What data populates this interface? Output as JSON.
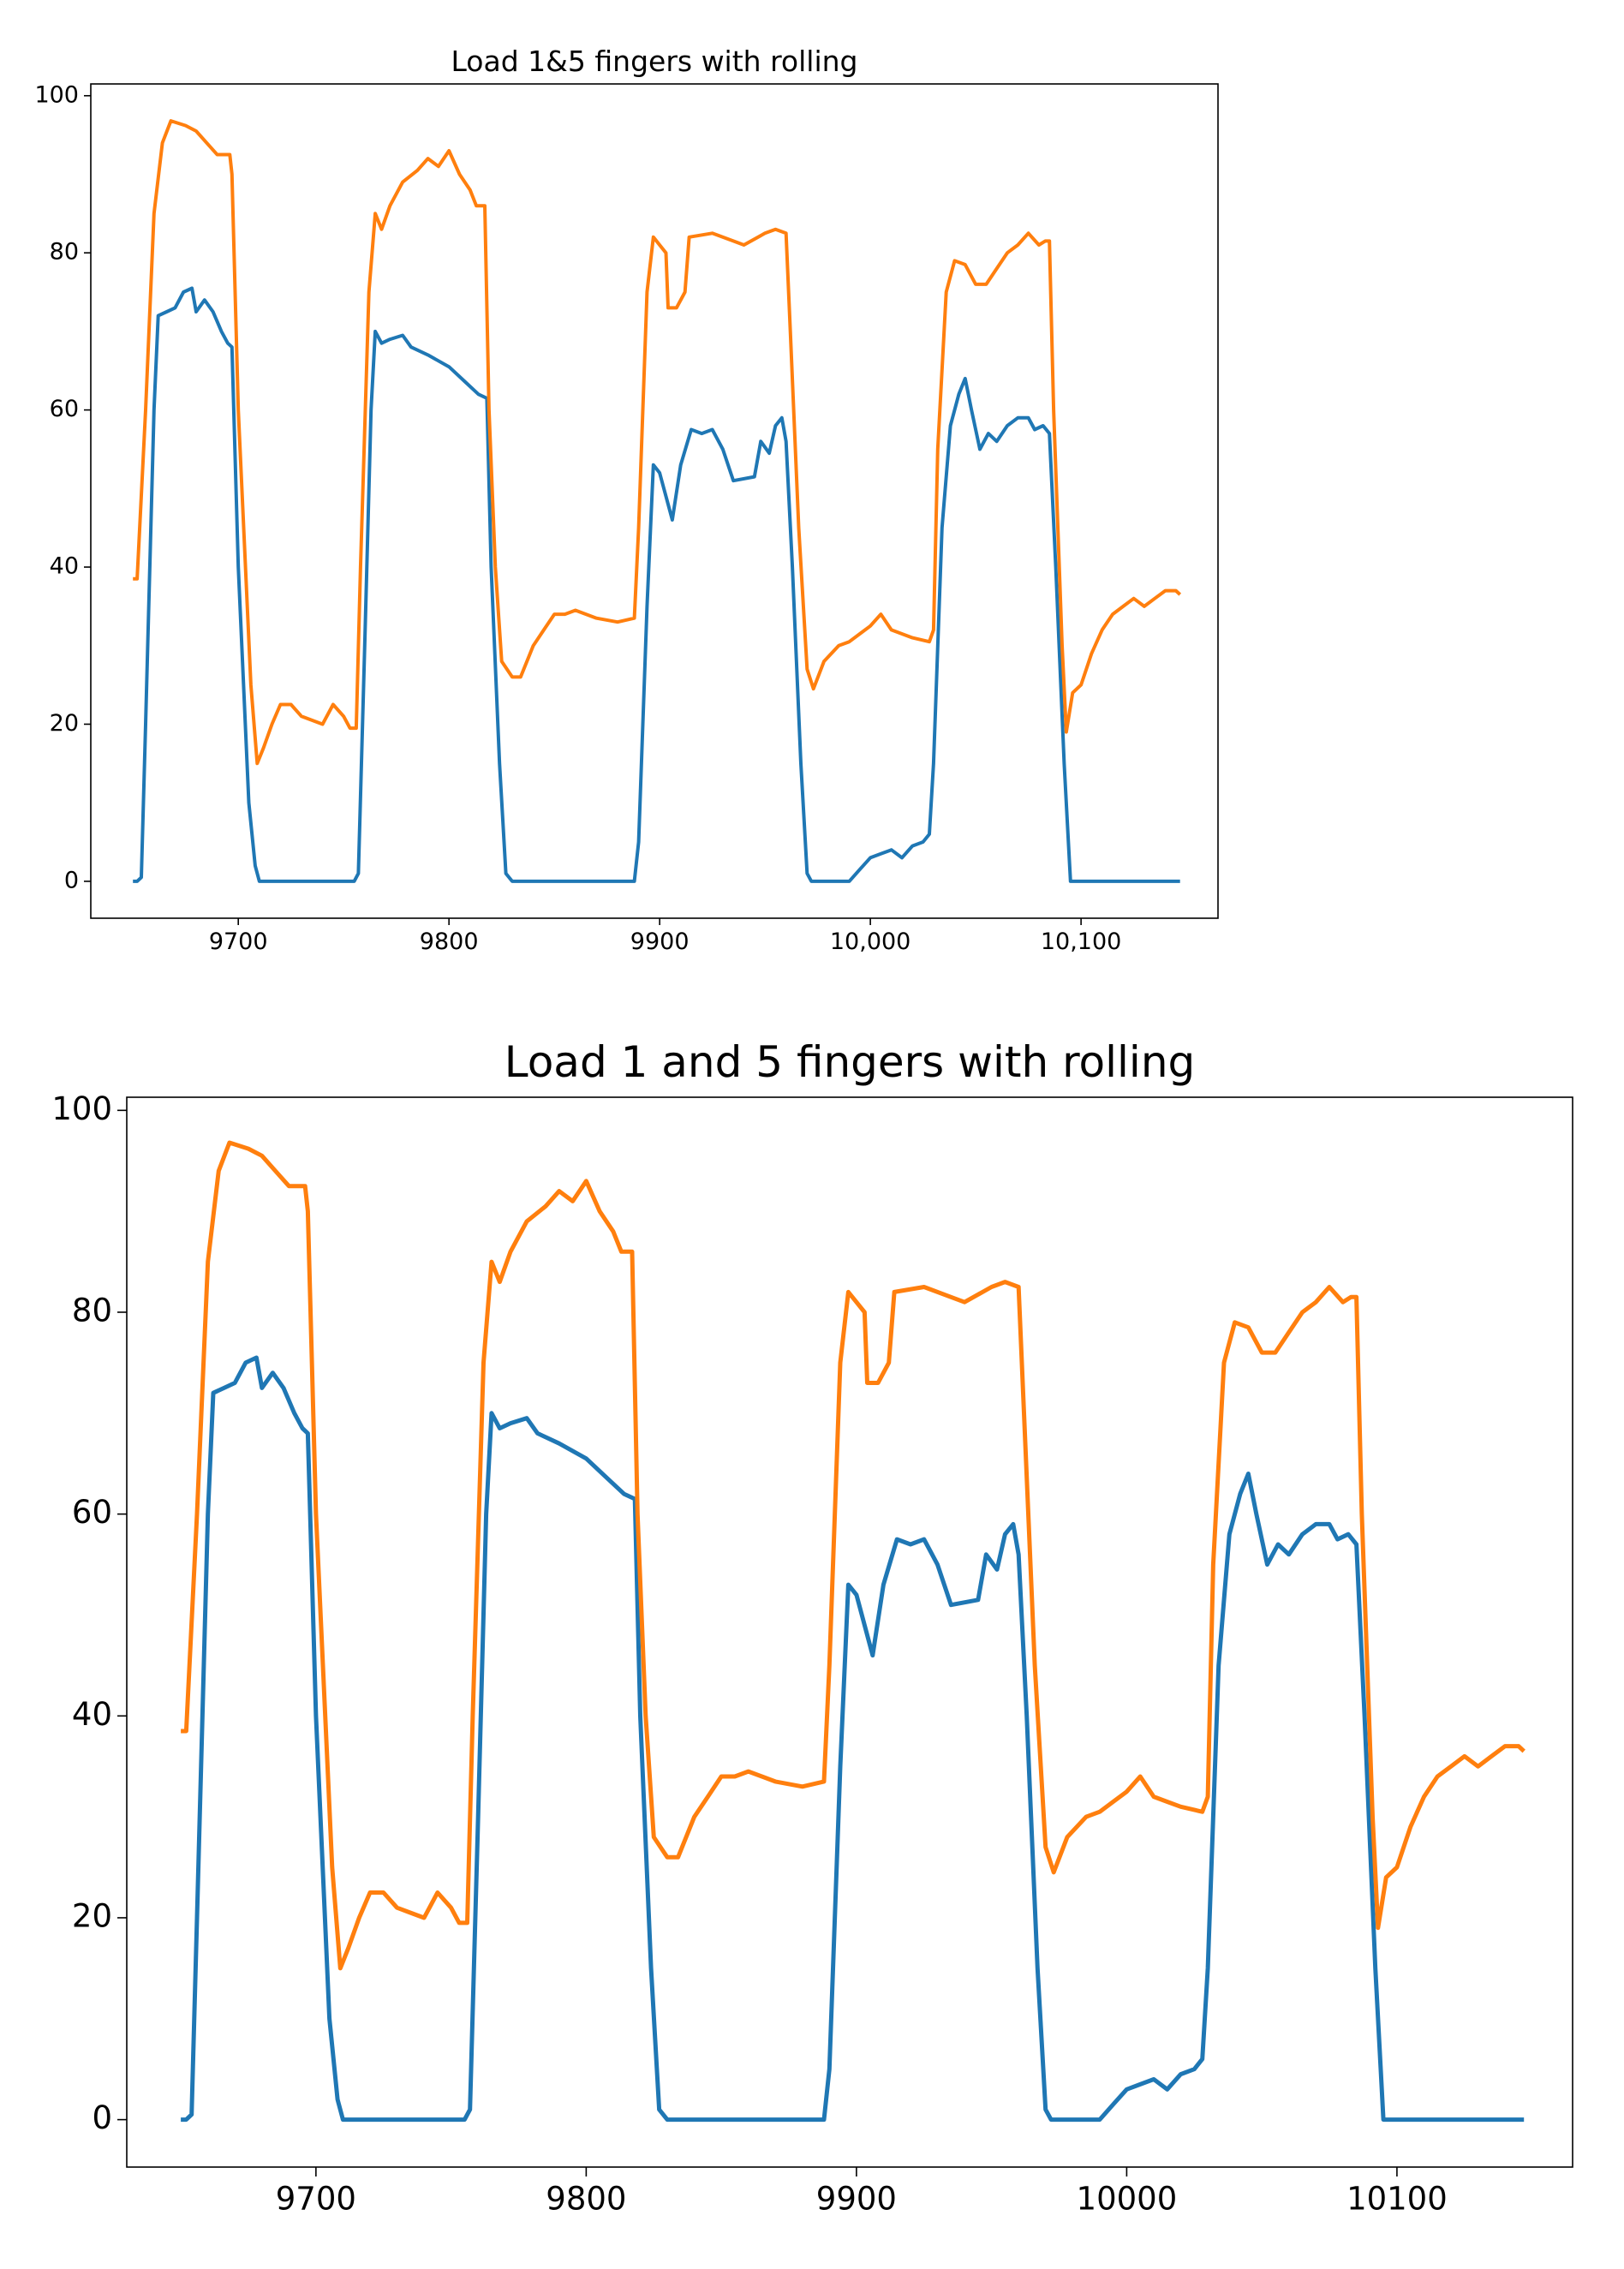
{
  "chart_data": [
    {
      "type": "line",
      "title": "Load 1&5 fingers with rolling",
      "xlim": [
        9630,
        10165
      ],
      "ylim": [
        -4.7,
        101.5
      ],
      "xticks": [
        9700,
        9800,
        9900,
        {
          "value": 10000,
          "label": "10,000"
        },
        {
          "value": 10100,
          "label": "10,100"
        }
      ],
      "yticks": [
        0,
        20,
        40,
        60,
        80,
        100
      ],
      "series": [
        {
          "color": "#1f77b4",
          "x": [
            9650,
            9652,
            9654,
            9656,
            9660,
            9662,
            9666,
            9670,
            9674,
            9678,
            9680,
            9684,
            9688,
            9692,
            9695,
            9697,
            9700,
            9705,
            9708,
            9710,
            9755,
            9757,
            9760,
            9763,
            9765,
            9768,
            9772,
            9778,
            9782,
            9790,
            9800,
            9808,
            9814,
            9818,
            9820,
            9824,
            9827,
            9830,
            9888,
            9890,
            9894,
            9897,
            9900,
            9904,
            9906,
            9910,
            9915,
            9920,
            9925,
            9930,
            9935,
            9945,
            9948,
            9952,
            9955,
            9958,
            9960,
            9963,
            9967,
            9970,
            9972,
            9990,
            9995,
            10000,
            10005,
            10010,
            10015,
            10020,
            10025,
            10028,
            10030,
            10034,
            10038,
            10042,
            10045,
            10048,
            10052,
            10056,
            10060,
            10065,
            10070,
            10075,
            10078,
            10082,
            10085,
            10088,
            10092,
            10095,
            10147
          ],
          "values": [
            0,
            0,
            0.5,
            20,
            60,
            72,
            72.5,
            73,
            75,
            75.5,
            72.5,
            74,
            72.5,
            70,
            68.5,
            68,
            40,
            10,
            2,
            0,
            0,
            1,
            30,
            60,
            70,
            68.5,
            69,
            69.5,
            68,
            67,
            65.5,
            63.5,
            62,
            61.5,
            40,
            15,
            1,
            0,
            0,
            5,
            35,
            53,
            52,
            48,
            46,
            53,
            57.5,
            57,
            57.5,
            55,
            51,
            51.5,
            56,
            54.5,
            58,
            59,
            56,
            40,
            15,
            1,
            0,
            0,
            1.5,
            3,
            3.5,
            4,
            3,
            4.5,
            5,
            6,
            15,
            45,
            58,
            62,
            64,
            60,
            55,
            57,
            56,
            58,
            59,
            59,
            57.5,
            58,
            57,
            40,
            15,
            0,
            0
          ]
        },
        {
          "color": "#ff7f0e",
          "x": [
            9650,
            9652,
            9656,
            9660,
            9664,
            9668,
            9675,
            9680,
            9685,
            9690,
            9696,
            9697,
            9700,
            9706,
            9709,
            9712,
            9716,
            9720,
            9725,
            9730,
            9735,
            9740,
            9745,
            9750,
            9753,
            9756,
            9758,
            9762,
            9765,
            9768,
            9772,
            9778,
            9785,
            9790,
            9795,
            9800,
            9805,
            9810,
            9813,
            9817,
            9819,
            9822,
            9825,
            9830,
            9834,
            9840,
            9845,
            9850,
            9855,
            9860,
            9865,
            9870,
            9880,
            9888,
            9890,
            9894,
            9897,
            9900,
            9903,
            9904,
            9908,
            9912,
            9914,
            9925,
            9935,
            9940,
            9950,
            9955,
            9960,
            9962,
            9966,
            9970,
            9973,
            9978,
            9985,
            9990,
            9995,
            10000,
            10005,
            10010,
            10015,
            10020,
            10028,
            10030,
            10032,
            10036,
            10040,
            10045,
            10050,
            10055,
            10060,
            10065,
            10070,
            10075,
            10080,
            10083,
            10085,
            10087,
            10091,
            10093,
            10096,
            10100,
            10105,
            10110,
            10115,
            10120,
            10125,
            10130,
            10135,
            10140,
            10145,
            10147
          ],
          "values": [
            38.5,
            38.5,
            60,
            85,
            94,
            96.8,
            96.2,
            95.5,
            94,
            92.5,
            92.5,
            90,
            60,
            25,
            15,
            17,
            20,
            22.5,
            22.5,
            21,
            20.5,
            20,
            22.5,
            21,
            19.5,
            19.5,
            40,
            75,
            85,
            83,
            86,
            89,
            90.5,
            92,
            91,
            93,
            90,
            88,
            86,
            86,
            60,
            40,
            28,
            26,
            26,
            30,
            32,
            34,
            34,
            34.5,
            34,
            33.5,
            33,
            33.5,
            45,
            75,
            82,
            81,
            80,
            73,
            73,
            75,
            82,
            82.5,
            81.5,
            81,
            82.5,
            83,
            82.5,
            70,
            45,
            27,
            24.5,
            28,
            30,
            30.5,
            31.5,
            32.5,
            34,
            32,
            31.5,
            31,
            30.5,
            32,
            55,
            75,
            79,
            78.5,
            76,
            76,
            78,
            80,
            81,
            82.5,
            81,
            81.5,
            81.5,
            60,
            30,
            19,
            24,
            25,
            29,
            32,
            34,
            35,
            36,
            35,
            36,
            37,
            37,
            36.5
          ]
        }
      ]
    },
    {
      "type": "line",
      "title": "Load 1 and 5 fingers with rolling",
      "xlim": [
        9630,
        10165
      ],
      "ylim": [
        -4.7,
        101.3
      ],
      "xticks": [
        9700,
        9800,
        9900,
        10000,
        10100
      ],
      "yticks": [
        0,
        20,
        40,
        60,
        80,
        100
      ],
      "series": [
        {
          "color": "#1f77b4",
          "x": [
            9650,
            9652,
            9654,
            9656,
            9660,
            9662,
            9666,
            9670,
            9674,
            9678,
            9680,
            9684,
            9688,
            9692,
            9695,
            9697,
            9700,
            9705,
            9708,
            9710,
            9755,
            9757,
            9760,
            9763,
            9765,
            9768,
            9772,
            9778,
            9782,
            9790,
            9800,
            9808,
            9814,
            9818,
            9820,
            9824,
            9827,
            9830,
            9888,
            9890,
            9894,
            9897,
            9900,
            9904,
            9906,
            9910,
            9915,
            9920,
            9925,
            9930,
            9935,
            9945,
            9948,
            9952,
            9955,
            9958,
            9960,
            9963,
            9967,
            9970,
            9972,
            9990,
            9995,
            10000,
            10005,
            10010,
            10015,
            10020,
            10025,
            10028,
            10030,
            10034,
            10038,
            10042,
            10045,
            10048,
            10052,
            10056,
            10060,
            10065,
            10070,
            10075,
            10078,
            10082,
            10085,
            10088,
            10092,
            10095,
            10147
          ],
          "values": [
            0,
            0,
            0.5,
            20,
            60,
            72,
            72.5,
            73,
            75,
            75.5,
            72.5,
            74,
            72.5,
            70,
            68.5,
            68,
            40,
            10,
            2,
            0,
            0,
            1,
            30,
            60,
            70,
            68.5,
            69,
            69.5,
            68,
            67,
            65.5,
            63.5,
            62,
            61.5,
            40,
            15,
            1,
            0,
            0,
            5,
            35,
            53,
            52,
            48,
            46,
            53,
            57.5,
            57,
            57.5,
            55,
            51,
            51.5,
            56,
            54.5,
            58,
            59,
            56,
            40,
            15,
            1,
            0,
            0,
            1.5,
            3,
            3.5,
            4,
            3,
            4.5,
            5,
            6,
            15,
            45,
            58,
            62,
            64,
            60,
            55,
            57,
            56,
            58,
            59,
            59,
            57.5,
            58,
            57,
            40,
            15,
            0,
            0
          ]
        },
        {
          "color": "#ff7f0e",
          "x": [
            9650,
            9652,
            9656,
            9660,
            9664,
            9668,
            9675,
            9680,
            9685,
            9690,
            9696,
            9697,
            9700,
            9706,
            9709,
            9712,
            9716,
            9720,
            9725,
            9730,
            9735,
            9740,
            9745,
            9750,
            9753,
            9756,
            9758,
            9762,
            9765,
            9768,
            9772,
            9778,
            9785,
            9790,
            9795,
            9800,
            9805,
            9810,
            9813,
            9817,
            9819,
            9822,
            9825,
            9830,
            9834,
            9840,
            9845,
            9850,
            9855,
            9860,
            9865,
            9870,
            9880,
            9888,
            9890,
            9894,
            9897,
            9900,
            9903,
            9904,
            9908,
            9912,
            9914,
            9925,
            9935,
            9940,
            9950,
            9955,
            9960,
            9962,
            9966,
            9970,
            9973,
            9978,
            9985,
            9990,
            9995,
            10000,
            10005,
            10010,
            10015,
            10020,
            10028,
            10030,
            10032,
            10036,
            10040,
            10045,
            10050,
            10055,
            10060,
            10065,
            10070,
            10075,
            10080,
            10083,
            10085,
            10087,
            10091,
            10093,
            10096,
            10100,
            10105,
            10110,
            10115,
            10120,
            10125,
            10130,
            10135,
            10140,
            10145,
            10147
          ],
          "values": [
            38.5,
            38.5,
            60,
            85,
            94,
            96.8,
            96.2,
            95.5,
            94,
            92.5,
            92.5,
            90,
            60,
            25,
            15,
            17,
            20,
            22.5,
            22.5,
            21,
            20.5,
            20,
            22.5,
            21,
            19.5,
            19.5,
            40,
            75,
            85,
            83,
            86,
            89,
            90.5,
            92,
            91,
            93,
            90,
            88,
            86,
            86,
            60,
            40,
            28,
            26,
            26,
            30,
            32,
            34,
            34,
            34.5,
            34,
            33.5,
            33,
            33.5,
            45,
            75,
            82,
            81,
            80,
            73,
            73,
            75,
            82,
            82.5,
            81.5,
            81,
            82.5,
            83,
            82.5,
            70,
            45,
            27,
            24.5,
            28,
            30,
            30.5,
            31.5,
            32.5,
            34,
            32,
            31.5,
            31,
            30.5,
            32,
            55,
            75,
            79,
            78.5,
            76,
            76,
            78,
            80,
            81,
            82.5,
            81,
            81.5,
            81.5,
            60,
            30,
            19,
            24,
            25,
            29,
            32,
            34,
            35,
            36,
            35,
            36,
            37,
            37,
            36.5
          ]
        }
      ]
    }
  ]
}
